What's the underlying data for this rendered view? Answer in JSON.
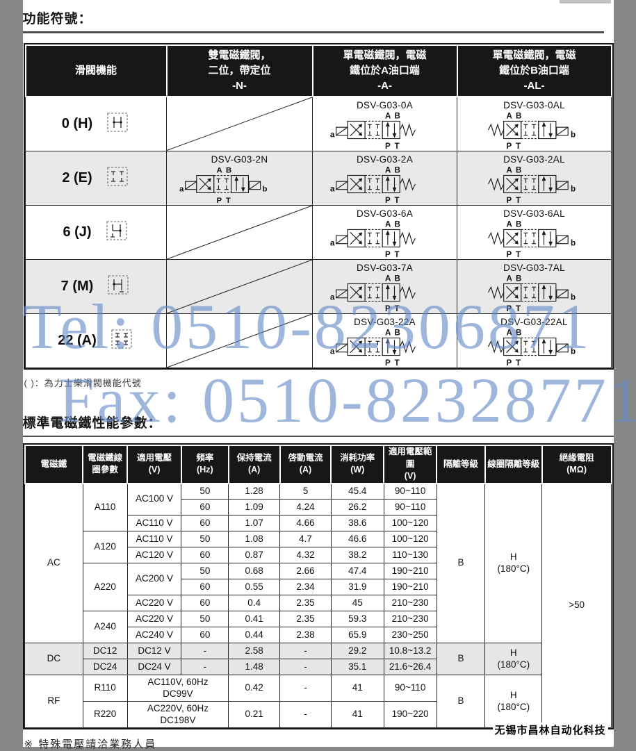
{
  "page": {
    "section1_title": "功能符號：",
    "section2_title": "標準電磁鐵性能參數：",
    "symbols_footnote": "( )：為力士樂滑閥機能代號",
    "voltage_note": "※ 特殊電壓請洽業務人員",
    "company": "无锡市昌林自动化科技"
  },
  "watermark": {
    "tel": "Tel: 0510-82306871",
    "fax": "Fax: 0510-82328771",
    "color": "#6287c6"
  },
  "symbols_table": {
    "headers": [
      "滑閥機能",
      "雙電磁鐵閥，\n二位，帶定位\n-N-",
      "單電磁鐵閥，電磁\n鐵位於A油口端\n-A-",
      "單電磁鐵閥，電磁\n鐵位於B油口端\n-AL-"
    ],
    "rows": [
      {
        "label": "0 (H)",
        "n": "",
        "a": "DSV-G03-0A",
        "al": "DSV-G03-0AL"
      },
      {
        "label": "2 (E)",
        "n": "DSV-G03-2N",
        "a": "DSV-G03-2A",
        "al": "DSV-G03-2AL"
      },
      {
        "label": "6 (J)",
        "n": "",
        "a": "DSV-G03-6A",
        "al": "DSV-G03-6AL"
      },
      {
        "label": "7 (M)",
        "n": "",
        "a": "DSV-G03-7A",
        "al": "DSV-G03-7AL"
      },
      {
        "label": "22 (A)",
        "n": "",
        "a": "DSV-G03-22A",
        "al": "DSV-G03-22AL"
      }
    ],
    "port_labels": {
      "a": "a",
      "b": "b",
      "A": "A",
      "B": "B",
      "P": "P",
      "T": "T"
    }
  },
  "perf_table": {
    "headers": [
      "電磁鐵",
      "電磁鐵線\n圈參數",
      "適用電壓\n(V)",
      "頻率\n(Hz)",
      "保持電流\n(A)",
      "啓動電流\n(A)",
      "消耗功率\n(W)",
      "適用電壓範圍\n(V)",
      "隔離等級",
      "線圈隔離等級",
      "絕緣電阻\n(MΩ)"
    ],
    "rows": [
      [
        "AC",
        "A110",
        "AC100 V",
        "50",
        "1.28",
        "5",
        "45.4",
        "90~110",
        "B",
        "H\n(180°C)",
        ">50"
      ],
      [
        "60",
        "1.09",
        "4.24",
        "26.2",
        "90~110"
      ],
      [
        "AC110 V",
        "60",
        "1.07",
        "4.66",
        "38.6",
        "100~120"
      ],
      [
        "A120",
        "AC110 V",
        "50",
        "1.08",
        "4.7",
        "46.6",
        "100~120"
      ],
      [
        "AC120 V",
        "60",
        "0.87",
        "4.32",
        "38.2",
        "110~130"
      ],
      [
        "A220",
        "AC200 V",
        "50",
        "0.68",
        "2.66",
        "47.4",
        "190~210"
      ],
      [
        "60",
        "0.55",
        "2.34",
        "31.9",
        "190~210"
      ],
      [
        "AC220 V",
        "60",
        "0.4",
        "2.35",
        "45",
        "210~230"
      ],
      [
        "A240",
        "AC220 V",
        "50",
        "0.41",
        "2.35",
        "59.3",
        "210~230"
      ],
      [
        "AC240 V",
        "60",
        "0.44",
        "2.38",
        "65.9",
        "230~250"
      ],
      [
        "DC",
        "DC12",
        "DC12 V",
        "-",
        "2.58",
        "-",
        "29.2",
        "10.8~13.2",
        "B",
        "H\n(180°C)"
      ],
      [
        "DC24",
        "DC24 V",
        "-",
        "1.48",
        "-",
        "35.1",
        "21.6~26.4"
      ],
      [
        "RF",
        "R110",
        "AC110V, 60Hz\nDC99V",
        "0.42",
        "-",
        "41",
        "90~110",
        "B",
        "H\n(180°C)"
      ],
      [
        "R220",
        "AC220V, 60Hz\nDC198V",
        "0.21",
        "-",
        "41",
        "190~220"
      ]
    ]
  }
}
